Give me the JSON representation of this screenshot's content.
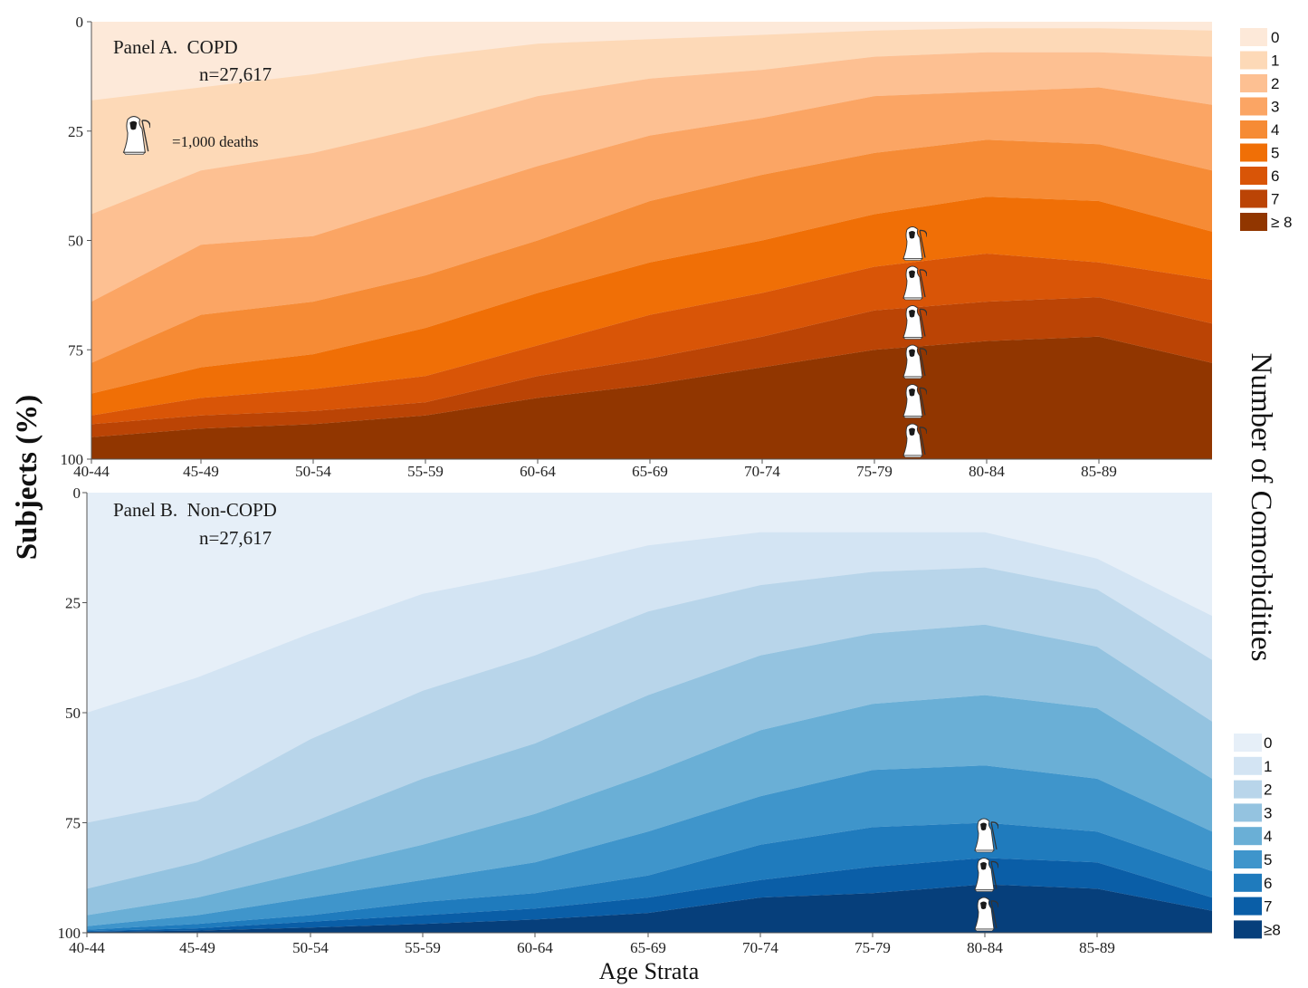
{
  "y_axis_title": "Subjects (%)",
  "x_axis_title": "Age Strata",
  "legend_title": "Number of Comorbidities",
  "death_icon_label": "=1,000 deaths",
  "icon": "grim-reaper-icon",
  "chart_data": [
    {
      "type": "area",
      "title": "Panel A.  COPD",
      "subtitle": "n=27,617",
      "categories": [
        "40-44",
        "45-49",
        "50-54",
        "55-59",
        "60-64",
        "65-69",
        "70-74",
        "75-79",
        "80-84",
        "85-89",
        ""
      ],
      "y_ticks": [
        0,
        25,
        50,
        75,
        100
      ],
      "ylim": [
        0,
        100
      ],
      "y_inverted": true,
      "stacked": true,
      "legend": [
        "0",
        "1",
        "2",
        "3",
        "4",
        "5",
        "6",
        "7",
        "≥ 8"
      ],
      "colors": [
        "#fde9d9",
        "#fdd9b7",
        "#fdc092",
        "#fba564",
        "#f68b35",
        "#f06f06",
        "#d95507",
        "#bb4405",
        "#913600"
      ],
      "boundaries": [
        [
          18,
          15,
          12,
          8,
          5,
          4,
          3,
          2,
          1.5,
          1.5,
          2
        ],
        [
          44,
          34,
          30,
          24,
          17,
          13,
          11,
          8,
          7,
          7,
          8
        ],
        [
          64,
          51,
          49,
          41,
          33,
          26,
          22,
          17,
          16,
          15,
          19
        ],
        [
          78,
          67,
          64,
          58,
          50,
          41,
          35,
          30,
          27,
          28,
          34
        ],
        [
          85,
          79,
          76,
          70,
          62,
          55,
          50,
          44,
          40,
          41,
          48
        ],
        [
          90,
          86,
          84,
          81,
          74,
          67,
          62,
          56,
          53,
          55,
          59
        ],
        [
          92,
          90,
          89,
          87,
          81,
          77,
          72,
          66,
          64,
          63,
          69
        ],
        [
          95,
          93,
          92,
          90,
          86,
          83,
          79,
          75,
          73,
          72,
          78
        ]
      ],
      "deaths_thousands": [
        0,
        0,
        0,
        0,
        0,
        0,
        0,
        6,
        0,
        0,
        0
      ]
    },
    {
      "type": "area",
      "title": "Panel B.  Non-COPD",
      "subtitle": "n=27,617",
      "categories": [
        "40-44",
        "45-49",
        "50-54",
        "55-59",
        "60-64",
        "65-69",
        "70-74",
        "75-79",
        "80-84",
        "85-89",
        ""
      ],
      "y_ticks": [
        0,
        25,
        50,
        75,
        100
      ],
      "ylim": [
        0,
        100
      ],
      "y_inverted": true,
      "stacked": true,
      "legend": [
        "0",
        "1",
        "2",
        "3",
        "4",
        "5",
        "6",
        "7",
        "≥8"
      ],
      "colors": [
        "#e6eff8",
        "#d3e4f3",
        "#b8d5ea",
        "#94c3e0",
        "#6aafd6",
        "#3f95cb",
        "#1f7bbd",
        "#0a5ea7",
        "#063f7b"
      ],
      "boundaries": [
        [
          50,
          42,
          32,
          23,
          18,
          12,
          9,
          9,
          9,
          15,
          28
        ],
        [
          75,
          70,
          56,
          45,
          37,
          27,
          21,
          18,
          17,
          22,
          38
        ],
        [
          90,
          84,
          75,
          65,
          57,
          46,
          37,
          32,
          30,
          35,
          52
        ],
        [
          96,
          92,
          86,
          80,
          73,
          64,
          54,
          48,
          46,
          49,
          65
        ],
        [
          98.5,
          96,
          92,
          88,
          84,
          77,
          69,
          63,
          62,
          65,
          77
        ],
        [
          99.3,
          98,
          96,
          93,
          91,
          87,
          80,
          76,
          75,
          77,
          86
        ],
        [
          99.6,
          99,
          97.5,
          96,
          94.5,
          92,
          88,
          85,
          83,
          84,
          92
        ],
        [
          99.8,
          99.5,
          98.8,
          98,
          97,
          95.5,
          92,
          91,
          89,
          90,
          95
        ]
      ],
      "deaths_thousands": [
        0,
        0,
        0,
        0,
        0,
        0,
        0,
        0,
        3,
        0,
        0
      ]
    }
  ]
}
